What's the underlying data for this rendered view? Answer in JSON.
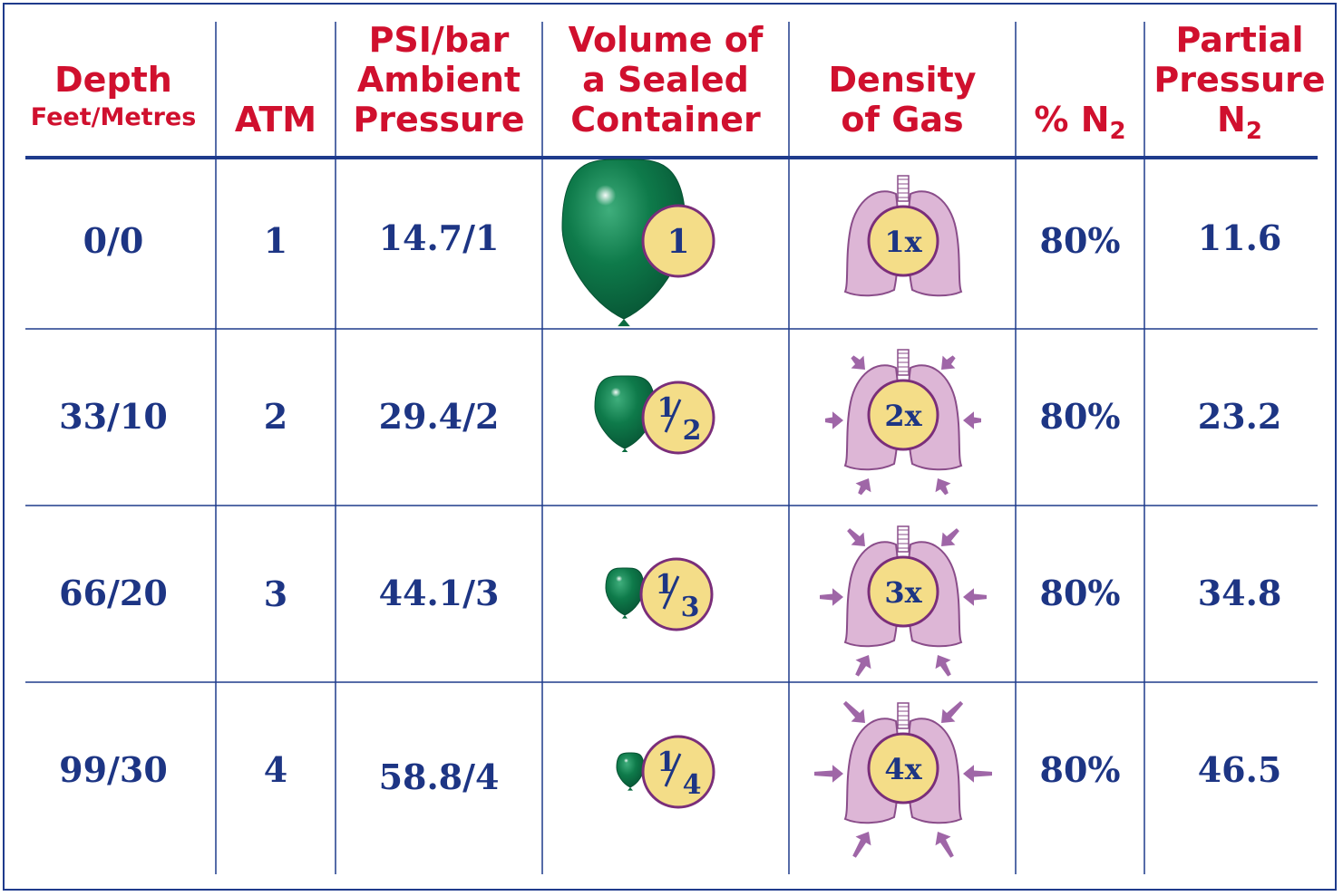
{
  "colors": {
    "header_text": "#d0102e",
    "body_text": "#1d3584",
    "rule": "#1f3b8c",
    "balloon": "#0e7a4a",
    "badge_fill": "#f4dd88",
    "badge_stroke": "#7a2e7a",
    "lung_fill": "#ddb6d6",
    "lung_stroke": "#8a4d8a",
    "arrow": "#8e4b98"
  },
  "headers": {
    "depth": "Depth",
    "depth_units": "Feet/Metres",
    "atm": "ATM",
    "pressure_l1": "PSI/bar",
    "pressure_l2": "Ambient",
    "pressure_l3": "Pressure",
    "volume_l1": "Volume of",
    "volume_l2": "a Sealed",
    "volume_l3": "Container",
    "density_l1": "Density",
    "density_l2": "of Gas",
    "n2_percent": "% N",
    "n2_percent_sub": "2",
    "pp_l1": "Partial",
    "pp_l2": "Pressure",
    "pp_l3": "N",
    "pp_l3_sub": "2"
  },
  "rows": [
    {
      "depth": "0/0",
      "atm": "1",
      "pressure": "14.7/1",
      "volume_num": "1",
      "volume_den": "",
      "volume_fraction": 1,
      "density": "1x",
      "n2": "80%",
      "pp": "11.6"
    },
    {
      "depth": "33/10",
      "atm": "2",
      "pressure": "29.4/2",
      "volume_num": "1",
      "volume_den": "2",
      "volume_fraction": 0.5,
      "density": "2x",
      "n2": "80%",
      "pp": "23.2"
    },
    {
      "depth": "66/20",
      "atm": "3",
      "pressure": "44.1/3",
      "volume_num": "1",
      "volume_den": "3",
      "volume_fraction": 0.333,
      "density": "3x",
      "n2": "80%",
      "pp": "34.8"
    },
    {
      "depth": "99/30",
      "atm": "4",
      "pressure": "58.8/4",
      "volume_num": "1",
      "volume_den": "4",
      "volume_fraction": 0.25,
      "density": "4x",
      "n2": "80%",
      "pp": "46.5"
    }
  ]
}
